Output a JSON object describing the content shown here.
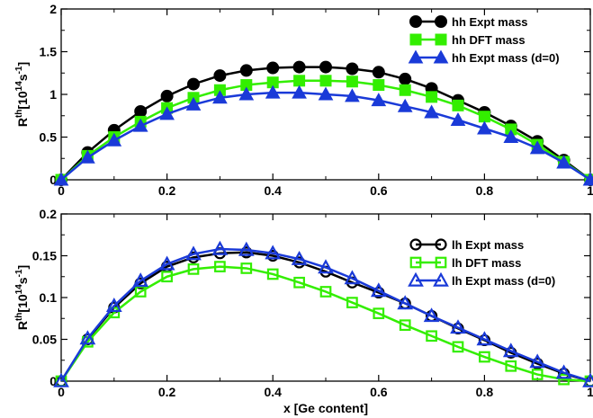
{
  "chart_data": [
    {
      "type": "line",
      "panel": "top",
      "ylabel": "R",
      "ylabel_sup": "th",
      "ylabel_unit": "[10",
      "ylabel_unit_sup": "14",
      "ylabel_unit_tail": "s",
      "ylabel_unit_tail_sup": "-1",
      "ylabel_close": "]",
      "xlabel": "",
      "xlim": [
        0,
        1
      ],
      "ylim": [
        0,
        2
      ],
      "xticks": [
        "0",
        "0.2",
        "0.4",
        "0.6",
        "0.8",
        "1"
      ],
      "yticks": [
        "0",
        "0.5",
        "1",
        "1.5",
        "2"
      ],
      "grid": false,
      "legend_position": "top-right",
      "x": [
        0,
        0.05,
        0.1,
        0.15,
        0.2,
        0.25,
        0.3,
        0.35,
        0.4,
        0.45,
        0.5,
        0.55,
        0.6,
        0.65,
        0.7,
        0.75,
        0.8,
        0.85,
        0.9,
        0.95,
        1
      ],
      "series": [
        {
          "name": "hh Expt mass",
          "color": "#000000",
          "marker": "filled-circle",
          "values": [
            0,
            0.32,
            0.58,
            0.8,
            0.98,
            1.12,
            1.22,
            1.28,
            1.31,
            1.32,
            1.32,
            1.3,
            1.26,
            1.18,
            1.07,
            0.93,
            0.79,
            0.63,
            0.45,
            0.23,
            0
          ]
        },
        {
          "name": "hh DFT mass",
          "color": "#33ee00",
          "marker": "filled-square",
          "values": [
            0,
            0.28,
            0.5,
            0.68,
            0.84,
            0.96,
            1.05,
            1.11,
            1.14,
            1.16,
            1.16,
            1.15,
            1.11,
            1.05,
            0.97,
            0.87,
            0.74,
            0.59,
            0.41,
            0.21,
            0
          ]
        },
        {
          "name": "hh Expt mass (d=0)",
          "color": "#1a3ad8",
          "marker": "filled-triangle",
          "values": [
            0,
            0.26,
            0.46,
            0.63,
            0.77,
            0.88,
            0.96,
            1.0,
            1.02,
            1.02,
            1.0,
            0.98,
            0.93,
            0.86,
            0.79,
            0.7,
            0.6,
            0.5,
            0.37,
            0.2,
            0
          ]
        }
      ]
    },
    {
      "type": "line",
      "panel": "bottom",
      "ylabel": "R",
      "ylabel_sup": "th",
      "ylabel_unit": "[10",
      "ylabel_unit_sup": "14",
      "ylabel_unit_tail": "s",
      "ylabel_unit_tail_sup": "-1",
      "ylabel_close": "]",
      "xlabel": "x [Ge content]",
      "xlim": [
        0,
        1
      ],
      "ylim": [
        0,
        0.2
      ],
      "xticks": [
        "0",
        "0.2",
        "0.4",
        "0.6",
        "0.8",
        "1"
      ],
      "yticks": [
        "0",
        "0.05",
        "0.1",
        "0.15",
        "0.2"
      ],
      "grid": false,
      "legend_position": "top-right",
      "x": [
        0,
        0.05,
        0.1,
        0.15,
        0.2,
        0.25,
        0.3,
        0.35,
        0.4,
        0.45,
        0.5,
        0.55,
        0.6,
        0.65,
        0.7,
        0.75,
        0.8,
        0.85,
        0.9,
        0.95,
        1
      ],
      "series": [
        {
          "name": "lh Expt mass",
          "color": "#000000",
          "marker": "open-circle",
          "values": [
            0,
            0.05,
            0.088,
            0.117,
            0.137,
            0.148,
            0.153,
            0.154,
            0.15,
            0.142,
            0.131,
            0.118,
            0.106,
            0.093,
            0.078,
            0.063,
            0.049,
            0.034,
            0.021,
            0.009,
            0
          ]
        },
        {
          "name": "lh DFT mass",
          "color": "#33ee00",
          "marker": "open-square",
          "values": [
            0,
            0.047,
            0.082,
            0.107,
            0.125,
            0.134,
            0.137,
            0.135,
            0.128,
            0.118,
            0.107,
            0.094,
            0.081,
            0.067,
            0.054,
            0.041,
            0.029,
            0.018,
            0.008,
            0.002,
            0
          ]
        },
        {
          "name": "lh Expt mass (d=0)",
          "color": "#1a3ad8",
          "marker": "open-triangle",
          "values": [
            0,
            0.051,
            0.09,
            0.12,
            0.14,
            0.152,
            0.158,
            0.157,
            0.153,
            0.146,
            0.136,
            0.123,
            0.108,
            0.093,
            0.078,
            0.064,
            0.05,
            0.036,
            0.023,
            0.01,
            0
          ]
        }
      ]
    }
  ]
}
